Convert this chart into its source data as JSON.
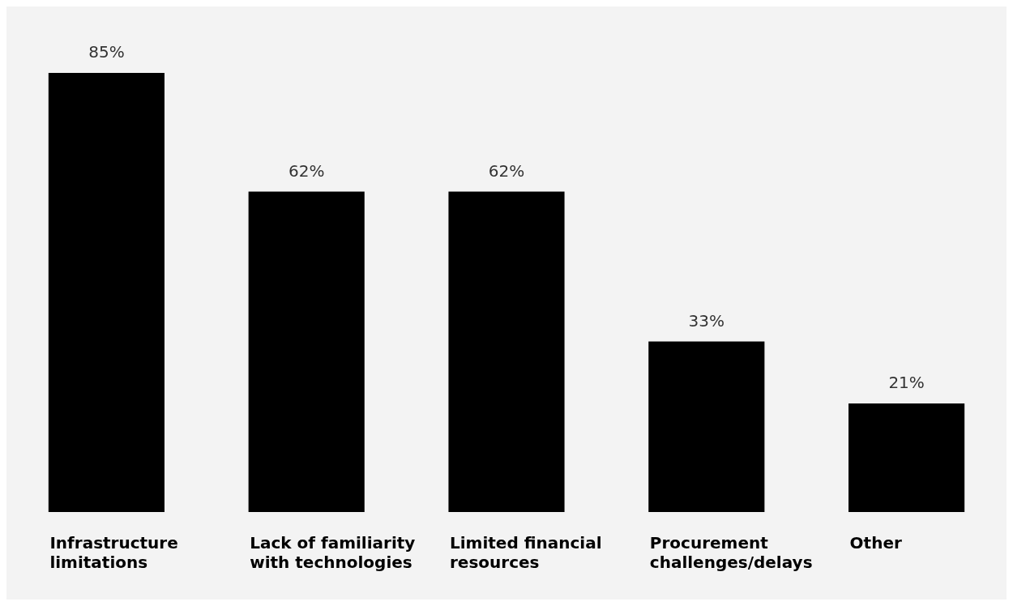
{
  "chart_data": {
    "type": "bar",
    "categories": [
      "Infrastructure limitations",
      "Lack of familiarity with technologies",
      "Limited financial resources",
      "Procurement challenges/delays",
      "Other"
    ],
    "values": [
      85,
      62,
      62,
      33,
      21
    ],
    "value_labels": [
      "85%",
      "62%",
      "62%",
      "33%",
      "21%"
    ],
    "color": "#000000",
    "grid": false,
    "legend": false,
    "tick_labels": "x"
  }
}
